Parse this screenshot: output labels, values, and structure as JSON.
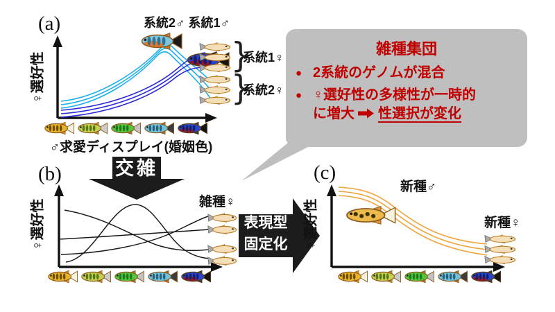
{
  "figure": {
    "background": "#FFFFFF",
    "description_colors": {
      "callout_bg": "#BFBFBF",
      "callout_text": "#C00000",
      "axis": "#111111"
    }
  },
  "panels": {
    "a": {
      "label": "(a)",
      "y_axis_label": "♀選好性",
      "x_axis_label": "♂求愛ディスプレイ(婚姻色)",
      "top_male_labels": "系統2♂ 系統1♂",
      "female_group_1_label": "系統1♀",
      "female_group_2_label": "系統2♀",
      "brace": "}",
      "curves": {
        "lineage2_female_pref": {
          "color": "#1FB0EC",
          "count": 3,
          "shape": "unimodal, peak at light-blue male display then steep decline"
        },
        "lineage1_female_pref": {
          "color": "#2B2BD9",
          "count": 3,
          "shape": "monotonic rise peaking at dark-blue male display"
        }
      }
    },
    "b": {
      "label": "(b)",
      "y_axis_label": "♀選好性",
      "hybrid_female_label": "雑種♀",
      "curves": {
        "color": "#1A1A1A",
        "count": 4,
        "shape": "diverse: decreasing, bell-shaped, flat-rising, increasing sigmoid"
      }
    },
    "c": {
      "label": "(c)",
      "y_axis_label": "♀選好性",
      "new_species_male_label": "新種♂",
      "new_species_female_label": "新種♀",
      "curves": {
        "color": "#F2A43C",
        "count": 3,
        "shape": "high at gold male display, sigmoid decline toward blue displays"
      }
    }
  },
  "arrows": {
    "hybridization": {
      "label": "交雑",
      "fill": "#1C1C1C",
      "text_color": "#FFFFFF"
    },
    "fixation": {
      "line1": "表現型",
      "line2": "固定化",
      "fill": "#1C1C1C",
      "text_color": "#FFFFFF"
    }
  },
  "callout": {
    "title": "雑種集団",
    "bullet_marker": "●",
    "bullet1": "2系統のゲノムが混合",
    "bullet2_line1": "♀選好性の多様性が一時的",
    "bullet2_line2_pre": "に増大",
    "bullet2_arrow_icon": "rightwards-arrow",
    "bullet2_underlined": "性選択が変化",
    "bg_color": "#BFBFBF",
    "text_color": "#C00000"
  },
  "fish": {
    "display_row": [
      {
        "name": "gold-male-fish",
        "dir": "left",
        "body": "#E9B42A",
        "stripe": "#6E4E00",
        "tail": "#F7F1DC",
        "fin": "#E78A1E",
        "outline": "#8A5A20",
        "pattern": "bars"
      },
      {
        "name": "yellow-green-male-fish",
        "dir": "left",
        "body": "#C5CE4E",
        "stripe": "#55791A",
        "tail": "#CCCCCC",
        "fin": "#C08A30",
        "outline": "#8A5A20",
        "pattern": "bars"
      },
      {
        "name": "green-male-fish",
        "dir": "left",
        "body": "#57C43C",
        "stripe": "#1E7A1E",
        "tail": "#C2C2C2",
        "fin": "#B07830",
        "outline": "#8A5A20",
        "pattern": "bars"
      },
      {
        "name": "light-blue-male-fish",
        "dir": "left",
        "body": "#70C2DA",
        "stripe": "#2C5F7C",
        "tail": "#3C3C3C",
        "fin": "#B06A28",
        "outline": "#8A5A20",
        "pattern": "bars"
      },
      {
        "name": "dark-blue-male-fish",
        "dir": "left",
        "body": "#2946C6",
        "stripe": "#141E6E",
        "belly": "#8E1A2E",
        "tail": "#141414",
        "fin": "#3A3A3A",
        "outline": "#5A3A10",
        "pattern": "bars"
      }
    ],
    "lineage2_male": {
      "name": "lineage2-male-fish",
      "dir": "left",
      "body": "#7AC6DF",
      "stripe": "#35708C",
      "belly": "#E2782A",
      "tail": "#1A1A1A",
      "fin": "#C47A28",
      "outline": "#8A5A20",
      "pattern": "bars"
    },
    "lineage1_male": {
      "name": "lineage1-male-fish",
      "dir": "left",
      "body": "#2A40CE",
      "stripe": "#131C70",
      "belly": "#8E1626",
      "tail": "#141414",
      "fin": "#30303A",
      "outline": "#5A3A10",
      "pattern": "bars"
    },
    "female": {
      "name": "female-fish",
      "dir": "right",
      "body": "#F4DFB8",
      "tail": "#ABABAB",
      "fin": "#E3C27E",
      "outline": "#B8771E"
    },
    "new_species_male": {
      "name": "new-species-male-fish",
      "dir": "left",
      "body": "#EBBA4A",
      "stripe": "#3E3200",
      "tail": "#F8F2DE",
      "fin": "#E2953A",
      "outline": "#8A5A20",
      "pattern": "spots"
    }
  }
}
